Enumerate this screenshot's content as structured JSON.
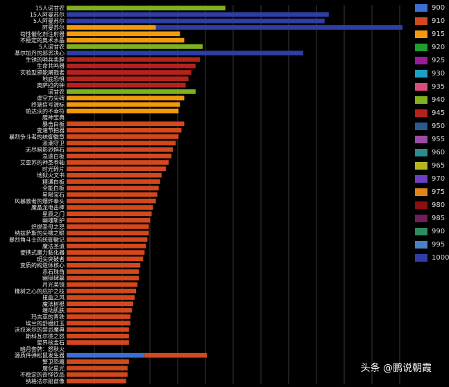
{
  "chart_data": {
    "type": "bar",
    "stacked": true,
    "orientation": "horizontal",
    "grid": true,
    "legend_position": "right",
    "categories": [
      "15人诺甘农",
      "15人阿曼苏尔",
      "5人阿曼苏尔",
      "阿曼苏尔",
      "苟性催化剂注射器",
      "不稳定的奥术水晶",
      "5人诺甘农",
      "基尔加丹的邪恶决心",
      "生锈的哨兵卖腥",
      "生命共鸣器",
      "实验型邪能屠戮者",
      "地底恐惧",
      "奥萨拉的钟",
      "诺甘农",
      "虚空方尖碑",
      "终端信号源标",
      "帕达沃的不幸符",
      "腥神宝典",
      "暴击白板",
      "变速节拍器",
      "暴烈争斗者的统御徽章",
      "涨潮守卫",
      "无尽暗影恐惧石",
      "急速白板",
      "艾亚苏的神圣卷轴",
      "时光碎片",
      "地狱火文书",
      "精通白板",
      "全能白板",
      "星陨宝石",
      "风暴歌者的爆炸拳头",
      "魔晶龙电击棒",
      "星辰之门",
      "幽魂斩护",
      "炽燃圣母之怒",
      "纳兹萨斯的尖啸之眼",
      "暴烈角斗士的统御徽记",
      "魔法圣遗",
      "便携式魔力黏化器",
      "斑尖突破者",
      "变质的构造体核心",
      "赤石珠角",
      "幽狱碑墓",
      "月光美镜",
      "橡树之心的庇护之枝",
      "扭曲之风",
      "魔法树根",
      "缠动肌肤",
      "玛吉亚的青铁",
      "埃兰的舒缓红玉",
      "沃拉米尔的禁忌魔典",
      "斯科瓦尔德之怒",
      "星界核金石",
      "暗月套牌：怒秋火",
      "源质件弹松鼠发生器",
      "警卫恐魔",
      "腐化星光",
      "不稳定的奇怪饮品",
      "纳格法尔船首像"
    ],
    "legend": [
      "900",
      "910",
      "915",
      "920",
      "925",
      "930",
      "935",
      "940",
      "945",
      "950",
      "955",
      "960",
      "965",
      "970",
      "975",
      "980",
      "985",
      "990",
      "995",
      "1000"
    ],
    "colors": [
      "#3b6fd1",
      "#d3481c",
      "#f29a0c",
      "#1e9e2e",
      "#9b1c9b",
      "#1ba1c1",
      "#d94c7c",
      "#7fb21e",
      "#b5221e",
      "#2d5a8e",
      "#9b4ca3",
      "#2a8c8c",
      "#b5b522",
      "#6b3fc2",
      "#e3841a",
      "#8b1010",
      "#6e1f5c",
      "#2e8a5f",
      "#4c7fc4",
      "#2f3da6"
    ],
    "series": [
      {
        "values": [
          0,
          0,
          0,
          0,
          0,
          0,
          0,
          0,
          0,
          0,
          0,
          0,
          0,
          0,
          0,
          0,
          0,
          0,
          0,
          0,
          0,
          0,
          0,
          0,
          0,
          0,
          0,
          0,
          0,
          0,
          0,
          0,
          0,
          0,
          0,
          0,
          0,
          0,
          0,
          0,
          0,
          0,
          0,
          0,
          0,
          0,
          0,
          0,
          0,
          0,
          0,
          0,
          0,
          0,
          55,
          0,
          0,
          0,
          0
        ]
      },
      {
        "values": [
          0,
          0,
          0,
          0,
          0,
          0,
          0,
          0,
          0,
          0,
          0,
          0,
          0,
          0,
          0,
          0,
          0,
          0,
          83,
          81,
          79,
          77,
          75,
          74,
          72,
          70,
          67,
          66,
          65,
          64,
          63,
          61,
          60,
          59,
          58,
          58,
          57,
          56,
          55,
          54,
          52,
          51,
          51,
          50,
          49,
          48,
          47,
          46,
          45,
          45,
          44,
          44,
          44,
          0,
          44,
          44,
          43,
          43,
          42
        ]
      },
      {
        "values": [
          0,
          0,
          0,
          63,
          80,
          83,
          0,
          0,
          0,
          0,
          0,
          0,
          0,
          0,
          83,
          80,
          79,
          0,
          0,
          0,
          0,
          0,
          0,
          0,
          0,
          0,
          0,
          0,
          0,
          0,
          0,
          0,
          0,
          0,
          0,
          0,
          0,
          0,
          0,
          0,
          0,
          0,
          0,
          0,
          0,
          0,
          0,
          0,
          0,
          0,
          0,
          0,
          0,
          0,
          0,
          0,
          0,
          0,
          0
        ]
      },
      {
        "values": [
          0,
          0,
          0,
          0,
          0,
          0,
          0,
          0,
          0,
          0,
          0,
          0,
          0,
          0,
          0,
          0,
          0,
          0,
          0,
          0,
          0,
          0,
          0,
          0,
          0,
          0,
          0,
          0,
          0,
          0,
          0,
          0,
          0,
          0,
          0,
          0,
          0,
          0,
          0,
          0,
          0,
          0,
          0,
          0,
          0,
          0,
          0,
          0,
          0,
          0,
          0,
          0,
          0,
          0,
          0,
          0,
          0,
          0,
          0
        ]
      },
      {
        "values": [
          0,
          0,
          0,
          0,
          0,
          0,
          0,
          0,
          0,
          0,
          0,
          0,
          0,
          0,
          0,
          0,
          0,
          0,
          0,
          0,
          0,
          0,
          0,
          0,
          0,
          0,
          0,
          0,
          0,
          0,
          0,
          0,
          0,
          0,
          0,
          0,
          0,
          0,
          0,
          0,
          0,
          0,
          0,
          0,
          0,
          0,
          0,
          0,
          0,
          0,
          0,
          0,
          0,
          0,
          0,
          0,
          0,
          0,
          0
        ]
      },
      {
        "values": [
          0,
          0,
          0,
          0,
          0,
          0,
          0,
          0,
          0,
          0,
          0,
          0,
          0,
          0,
          0,
          0,
          0,
          0,
          0,
          0,
          0,
          0,
          0,
          0,
          0,
          0,
          0,
          0,
          0,
          0,
          0,
          0,
          0,
          0,
          0,
          0,
          0,
          0,
          0,
          0,
          0,
          0,
          0,
          0,
          0,
          0,
          0,
          0,
          0,
          0,
          0,
          0,
          0,
          0,
          0,
          0,
          0,
          0,
          0
        ]
      },
      {
        "values": [
          0,
          0,
          0,
          0,
          0,
          0,
          0,
          0,
          0,
          0,
          0,
          0,
          0,
          0,
          0,
          0,
          0,
          0,
          0,
          0,
          0,
          0,
          0,
          0,
          0,
          0,
          0,
          0,
          0,
          0,
          0,
          0,
          0,
          0,
          0,
          0,
          0,
          0,
          0,
          0,
          0,
          0,
          0,
          0,
          0,
          0,
          0,
          0,
          0,
          0,
          0,
          0,
          0,
          0,
          0,
          0,
          0,
          0,
          0
        ]
      },
      {
        "values": [
          112,
          0,
          0,
          0,
          0,
          0,
          96,
          0,
          0,
          0,
          0,
          0,
          0,
          91,
          0,
          0,
          0,
          0,
          0,
          0,
          0,
          0,
          0,
          0,
          0,
          0,
          0,
          0,
          0,
          0,
          0,
          0,
          0,
          0,
          0,
          0,
          0,
          0,
          0,
          0,
          0,
          0,
          0,
          0,
          0,
          0,
          0,
          0,
          0,
          0,
          0,
          0,
          0,
          0,
          0,
          0,
          0,
          0,
          0
        ]
      },
      {
        "values": [
          0,
          0,
          0,
          0,
          0,
          0,
          0,
          0,
          94,
          91,
          88,
          86,
          84,
          0,
          0,
          0,
          0,
          0,
          0,
          0,
          0,
          0,
          0,
          0,
          0,
          0,
          0,
          0,
          0,
          0,
          0,
          0,
          0,
          0,
          0,
          0,
          0,
          0,
          0,
          0,
          0,
          0,
          0,
          0,
          0,
          0,
          0,
          0,
          0,
          0,
          0,
          0,
          0,
          0,
          0,
          0,
          0,
          0,
          0
        ]
      },
      {
        "values": [
          0,
          0,
          0,
          0,
          0,
          0,
          0,
          0,
          0,
          0,
          0,
          0,
          0,
          0,
          0,
          0,
          0,
          0,
          0,
          0,
          0,
          0,
          0,
          0,
          0,
          0,
          0,
          0,
          0,
          0,
          0,
          0,
          0,
          0,
          0,
          0,
          0,
          0,
          0,
          0,
          0,
          0,
          0,
          0,
          0,
          0,
          0,
          0,
          0,
          0,
          0,
          0,
          0,
          0,
          0,
          0,
          0,
          0,
          0
        ]
      },
      {
        "values": [
          0,
          0,
          0,
          0,
          0,
          0,
          0,
          0,
          0,
          0,
          0,
          0,
          0,
          0,
          0,
          0,
          0,
          0,
          0,
          0,
          0,
          0,
          0,
          0,
          0,
          0,
          0,
          0,
          0,
          0,
          0,
          0,
          0,
          0,
          0,
          0,
          0,
          0,
          0,
          0,
          0,
          0,
          0,
          0,
          0,
          0,
          0,
          0,
          0,
          0,
          0,
          0,
          0,
          0,
          0,
          0,
          0,
          0,
          0
        ]
      },
      {
        "values": [
          0,
          0,
          0,
          0,
          0,
          0,
          0,
          0,
          0,
          0,
          0,
          0,
          0,
          0,
          0,
          0,
          0,
          0,
          0,
          0,
          0,
          0,
          0,
          0,
          0,
          0,
          0,
          0,
          0,
          0,
          0,
          0,
          0,
          0,
          0,
          0,
          0,
          0,
          0,
          0,
          0,
          0,
          0,
          0,
          0,
          0,
          0,
          0,
          0,
          0,
          0,
          0,
          0,
          0,
          0,
          0,
          0,
          0,
          0
        ]
      },
      {
        "values": [
          0,
          0,
          0,
          0,
          0,
          0,
          0,
          0,
          0,
          0,
          0,
          0,
          0,
          0,
          0,
          0,
          0,
          0,
          0,
          0,
          0,
          0,
          0,
          0,
          0,
          0,
          0,
          0,
          0,
          0,
          0,
          0,
          0,
          0,
          0,
          0,
          0,
          0,
          0,
          0,
          0,
          0,
          0,
          0,
          0,
          0,
          0,
          0,
          0,
          0,
          0,
          0,
          0,
          0,
          0,
          0,
          0,
          0,
          0
        ]
      },
      {
        "values": [
          0,
          0,
          0,
          0,
          0,
          0,
          0,
          0,
          0,
          0,
          0,
          0,
          0,
          0,
          0,
          0,
          0,
          0,
          0,
          0,
          0,
          0,
          0,
          0,
          0,
          0,
          0,
          0,
          0,
          0,
          0,
          0,
          0,
          0,
          0,
          0,
          0,
          0,
          0,
          0,
          0,
          0,
          0,
          0,
          0,
          0,
          0,
          0,
          0,
          0,
          0,
          0,
          0,
          0,
          0,
          0,
          0,
          0,
          0
        ]
      },
      {
        "values": [
          0,
          0,
          0,
          0,
          0,
          0,
          0,
          0,
          0,
          0,
          0,
          0,
          0,
          0,
          0,
          0,
          0,
          0,
          0,
          0,
          0,
          0,
          0,
          0,
          0,
          0,
          0,
          0,
          0,
          0,
          0,
          0,
          0,
          0,
          0,
          0,
          0,
          0,
          0,
          0,
          0,
          0,
          0,
          0,
          0,
          0,
          0,
          0,
          0,
          0,
          0,
          0,
          0,
          0,
          0,
          0,
          0,
          0,
          0
        ]
      },
      {
        "values": [
          0,
          0,
          0,
          0,
          0,
          0,
          0,
          0,
          0,
          0,
          0,
          0,
          0,
          0,
          0,
          0,
          0,
          0,
          0,
          0,
          0,
          0,
          0,
          0,
          0,
          0,
          0,
          0,
          0,
          0,
          0,
          0,
          0,
          0,
          0,
          0,
          0,
          0,
          0,
          0,
          0,
          0,
          0,
          0,
          0,
          0,
          0,
          0,
          0,
          0,
          0,
          0,
          0,
          0,
          0,
          0,
          0,
          0,
          0
        ]
      },
      {
        "values": [
          0,
          0,
          0,
          0,
          0,
          0,
          0,
          0,
          0,
          0,
          0,
          0,
          0,
          0,
          0,
          0,
          0,
          0,
          0,
          0,
          0,
          0,
          0,
          0,
          0,
          0,
          0,
          0,
          0,
          0,
          0,
          0,
          0,
          0,
          0,
          0,
          0,
          0,
          0,
          0,
          0,
          0,
          0,
          0,
          0,
          0,
          0,
          0,
          0,
          0,
          0,
          0,
          0,
          0,
          0,
          0,
          0,
          0,
          0
        ]
      },
      {
        "values": [
          0,
          0,
          0,
          0,
          0,
          0,
          0,
          0,
          0,
          0,
          0,
          0,
          0,
          0,
          0,
          0,
          0,
          0,
          0,
          0,
          0,
          0,
          0,
          0,
          0,
          0,
          0,
          0,
          0,
          0,
          0,
          0,
          0,
          0,
          0,
          0,
          0,
          0,
          0,
          0,
          0,
          0,
          0,
          0,
          0,
          0,
          0,
          0,
          0,
          0,
          0,
          0,
          0,
          0,
          0,
          0,
          0,
          0,
          0
        ]
      },
      {
        "values": [
          0,
          0,
          0,
          0,
          0,
          0,
          0,
          0,
          0,
          0,
          0,
          0,
          0,
          0,
          0,
          0,
          0,
          0,
          0,
          0,
          0,
          0,
          0,
          0,
          0,
          0,
          0,
          0,
          0,
          0,
          0,
          0,
          0,
          0,
          0,
          0,
          0,
          0,
          0,
          0,
          0,
          0,
          0,
          0,
          0,
          0,
          0,
          0,
          0,
          0,
          0,
          0,
          0,
          0,
          0,
          0,
          0,
          0,
          0
        ]
      },
      {
        "values": [
          0,
          185,
          182,
          174,
          0,
          0,
          0,
          167,
          0,
          0,
          0,
          0,
          0,
          0,
          0,
          0,
          0,
          0,
          0,
          0,
          0,
          0,
          0,
          0,
          0,
          0,
          0,
          0,
          0,
          0,
          0,
          0,
          0,
          0,
          0,
          0,
          0,
          0,
          0,
          0,
          0,
          0,
          0,
          0,
          0,
          0,
          0,
          0,
          0,
          0,
          0,
          0,
          0,
          0,
          0,
          0,
          0,
          0,
          0
        ]
      }
    ]
  },
  "watermark": "头条 @鹏说朝霞"
}
